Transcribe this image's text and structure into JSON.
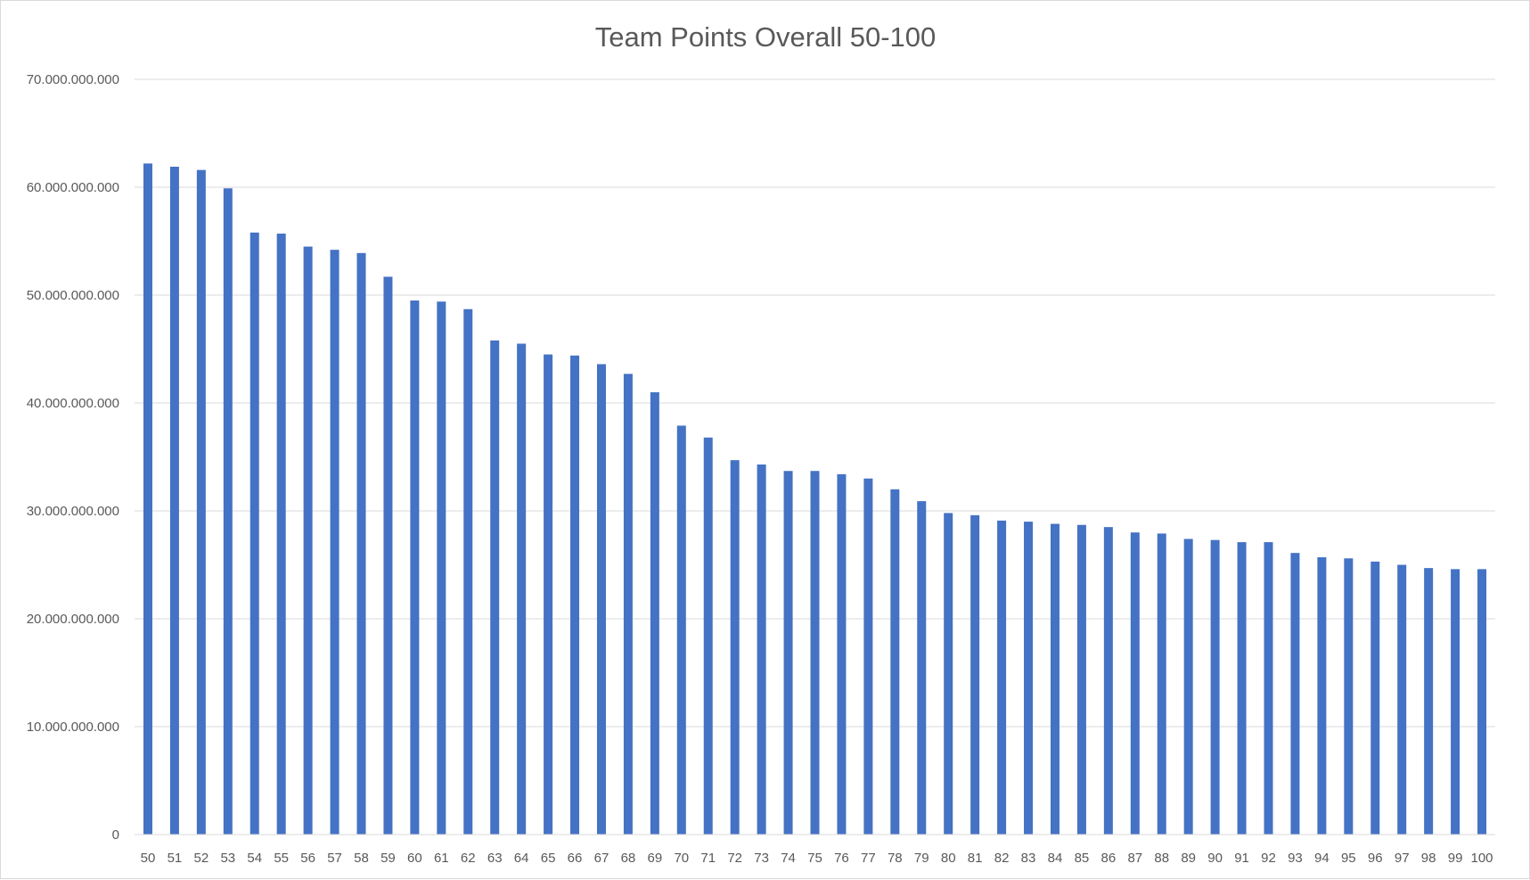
{
  "chart_data": {
    "type": "bar",
    "title": "Team Points Overall 50-100",
    "xlabel": "",
    "ylabel": "",
    "ylim": [
      0,
      70000000000
    ],
    "y_ticks": [
      0,
      10000000000,
      20000000000,
      30000000000,
      40000000000,
      50000000000,
      60000000000,
      70000000000
    ],
    "y_tick_labels": [
      "0",
      "10.000.000.000",
      "20.000.000.000",
      "30.000.000.000",
      "40.000.000.000",
      "50.000.000.000",
      "60.000.000.000",
      "70.000.000.000"
    ],
    "grid": true,
    "legend": "none",
    "bar_color": "#4472c4",
    "grid_color": "#d9d9d9",
    "categories": [
      "50",
      "51",
      "52",
      "53",
      "54",
      "55",
      "56",
      "57",
      "58",
      "59",
      "60",
      "61",
      "62",
      "63",
      "64",
      "65",
      "66",
      "67",
      "68",
      "69",
      "70",
      "71",
      "72",
      "73",
      "74",
      "75",
      "76",
      "77",
      "78",
      "79",
      "80",
      "81",
      "82",
      "83",
      "84",
      "85",
      "86",
      "87",
      "88",
      "89",
      "90",
      "91",
      "92",
      "93",
      "94",
      "95",
      "96",
      "97",
      "98",
      "99",
      "100"
    ],
    "values": [
      62200000000,
      61900000000,
      61600000000,
      59900000000,
      55800000000,
      55700000000,
      54500000000,
      54200000000,
      53900000000,
      51700000000,
      49500000000,
      49400000000,
      48700000000,
      45800000000,
      45500000000,
      44500000000,
      44400000000,
      43600000000,
      42700000000,
      41000000000,
      37900000000,
      36800000000,
      34700000000,
      34300000000,
      33700000000,
      33700000000,
      33400000000,
      33000000000,
      32000000000,
      30900000000,
      29800000000,
      29600000000,
      29100000000,
      29000000000,
      28800000000,
      28700000000,
      28500000000,
      28000000000,
      27900000000,
      27400000000,
      27300000000,
      27100000000,
      27100000000,
      26100000000,
      25700000000,
      25600000000,
      25300000000,
      25000000000,
      24700000000,
      24600000000,
      24600000000
    ]
  }
}
